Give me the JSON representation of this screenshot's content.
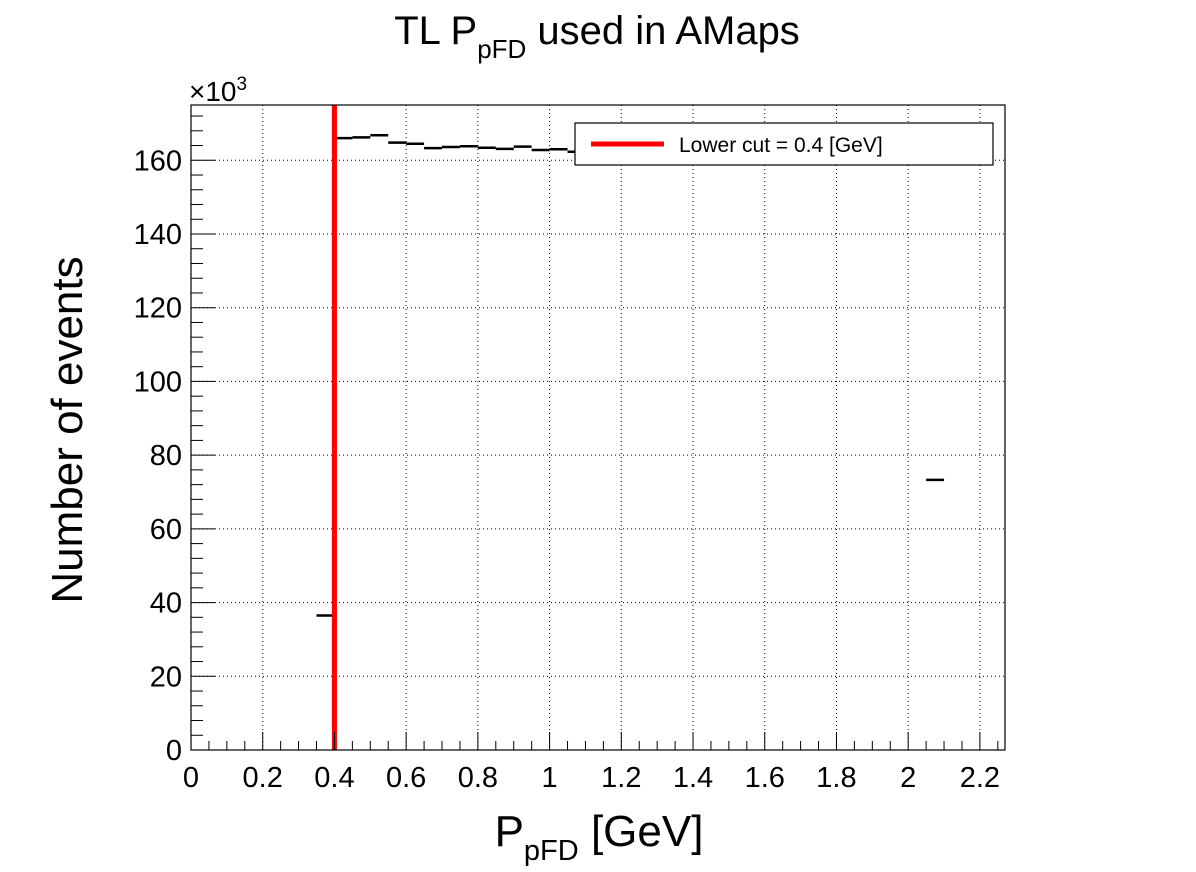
{
  "chart_data": {
    "type": "bar",
    "title": {
      "main": "TL P",
      "sub": "pFD",
      "rest": " used in AMaps"
    },
    "xlabel": {
      "main": "P",
      "sub": "pFD",
      "rest": " [GeV]"
    },
    "ylabel": "Number of events",
    "y_multiplier": {
      "base": "×10",
      "exp": "3"
    },
    "xlim": [
      0,
      2.27
    ],
    "ylim": [
      0,
      175
    ],
    "x_ticks": [
      0,
      0.2,
      0.4,
      0.6,
      0.8,
      1,
      1.2,
      1.4,
      1.6,
      1.8,
      2,
      2.2
    ],
    "x_tick_labels": [
      "0",
      "0.2",
      "0.4",
      "0.6",
      "0.8",
      "1",
      "1.2",
      "1.4",
      "1.6",
      "1.8",
      "2",
      "2.2"
    ],
    "y_ticks": [
      0,
      20,
      40,
      60,
      80,
      100,
      120,
      140,
      160
    ],
    "y_tick_labels": [
      "0",
      "20",
      "40",
      "60",
      "80",
      "100",
      "120",
      "140",
      "160"
    ],
    "grid": true,
    "bin_width": 0.05,
    "bins": [
      {
        "x": 0.35,
        "y": 36.5
      },
      {
        "x": 0.4,
        "y": 166.0
      },
      {
        "x": 0.45,
        "y": 166.2
      },
      {
        "x": 0.5,
        "y": 166.8
      },
      {
        "x": 0.55,
        "y": 164.8
      },
      {
        "x": 0.6,
        "y": 164.5
      },
      {
        "x": 0.65,
        "y": 163.3
      },
      {
        "x": 0.7,
        "y": 163.6
      },
      {
        "x": 0.75,
        "y": 163.8
      },
      {
        "x": 0.8,
        "y": 163.4
      },
      {
        "x": 0.85,
        "y": 163.1
      },
      {
        "x": 0.9,
        "y": 163.7
      },
      {
        "x": 0.95,
        "y": 162.8
      },
      {
        "x": 1.0,
        "y": 163.0
      },
      {
        "x": 1.05,
        "y": 162.3
      },
      {
        "x": 1.1,
        "y": 162.6
      },
      {
        "x": 2.05,
        "y": 73.3
      }
    ],
    "cut": {
      "x": 0.4,
      "color": "#ff0000"
    },
    "legend": {
      "label": "Lower cut = 0.4 [GeV]",
      "placement": "top-right"
    }
  }
}
